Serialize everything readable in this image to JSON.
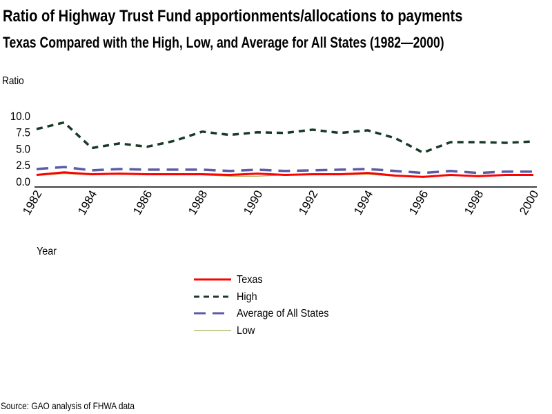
{
  "chart_data": {
    "type": "line",
    "title": "Ratio of Highway Trust Fund apportionments/allocations to payments",
    "subtitle": "Texas Compared with the High, Low, and Average for All States (1982—2000)",
    "xlabel": "Year",
    "ylabel": "Ratio",
    "ylim": [
      0,
      10
    ],
    "yticks": [
      "0.0",
      "2.5",
      "5.0",
      "7.5",
      "10.0"
    ],
    "ytick_values": [
      0,
      2.5,
      5,
      7.5,
      10
    ],
    "x": [
      1982,
      1983,
      1984,
      1985,
      1986,
      1987,
      1988,
      1989,
      1990,
      1991,
      1992,
      1993,
      1994,
      1995,
      1996,
      1997,
      1998,
      1999,
      2000
    ],
    "xticks": [
      "1982",
      "1984",
      "1986",
      "1988",
      "1990",
      "1992",
      "1994",
      "1996",
      "1998",
      "2000"
    ],
    "xtick_values": [
      1982,
      1984,
      1986,
      1988,
      1990,
      1992,
      1994,
      1996,
      1998,
      2000
    ],
    "grid": false,
    "legend_position": "bottom-center",
    "series": [
      {
        "name": "Texas",
        "color": "#ff0000",
        "style": "solid",
        "values": [
          1.0,
          1.4,
          1.1,
          1.2,
          1.1,
          1.1,
          1.1,
          1.0,
          1.2,
          1.0,
          1.1,
          1.1,
          1.3,
          0.9,
          0.7,
          1.0,
          0.8,
          1.0,
          1.0
        ]
      },
      {
        "name": "High",
        "color": "#1a3a28",
        "style": "short-dash",
        "values": [
          8.0,
          9.0,
          5.1,
          5.8,
          5.3,
          6.2,
          7.6,
          7.1,
          7.5,
          7.4,
          7.9,
          7.4,
          7.8,
          6.6,
          4.4,
          6.0,
          6.0,
          5.9,
          6.1
        ]
      },
      {
        "name": "Average of All States",
        "color": "#5b5ba8",
        "style": "long-dash",
        "values": [
          1.9,
          2.2,
          1.7,
          1.9,
          1.8,
          1.8,
          1.8,
          1.6,
          1.8,
          1.6,
          1.7,
          1.8,
          1.9,
          1.6,
          1.3,
          1.6,
          1.3,
          1.5,
          1.5
        ]
      },
      {
        "name": "Low",
        "color": "#a0b050",
        "style": "thin-solid",
        "values": [
          0.9,
          1.2,
          1.0,
          1.1,
          1.0,
          1.0,
          1.0,
          0.8,
          0.8,
          1.0,
          1.0,
          1.0,
          1.1,
          0.8,
          0.8,
          0.9,
          0.9,
          0.9,
          0.9
        ]
      }
    ],
    "source": "Source: GAO analysis of FHWA data"
  }
}
